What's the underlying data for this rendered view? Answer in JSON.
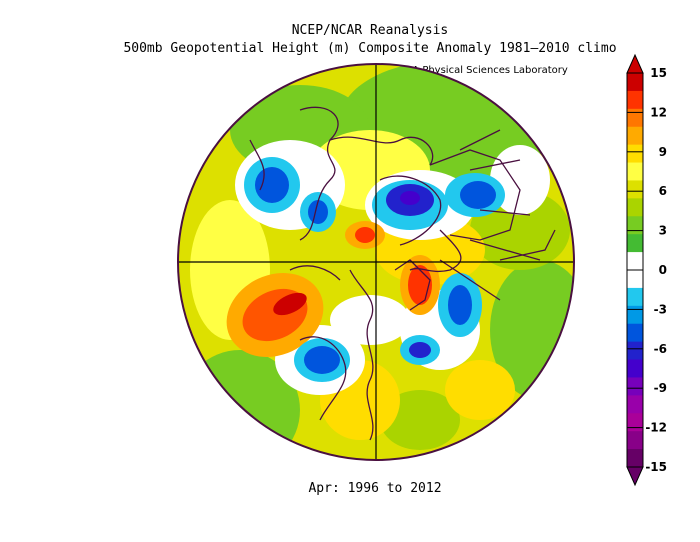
{
  "header": {
    "title_line1": "NCEP/NCAR Reanalysis",
    "title_line2": "500mb Geopotential Height (m) Composite Anomaly 1981–2010 climo",
    "lab": "NOAA Physical Sciences Laboratory"
  },
  "footer": {
    "period": "Apr: 1996 to 2012"
  },
  "colorbar": {
    "labels": [
      "15",
      "12",
      "9",
      "6",
      "3",
      "0",
      "-3",
      "-6",
      "-9",
      "-12",
      "-15"
    ],
    "colors": [
      "#cc0000",
      "#ff3300",
      "#ff7700",
      "#ffaa00",
      "#ffdd00",
      "#ffff44",
      "#dde000",
      "#aad400",
      "#77cc22",
      "#44bb33",
      "#ffffff",
      "#ffffff",
      "#22c8ee",
      "#0099e6",
      "#0055dd",
      "#2222cc",
      "#4400cc",
      "#7700bb",
      "#9900aa",
      "#aa0099",
      "#880088",
      "#660066"
    ]
  }
}
